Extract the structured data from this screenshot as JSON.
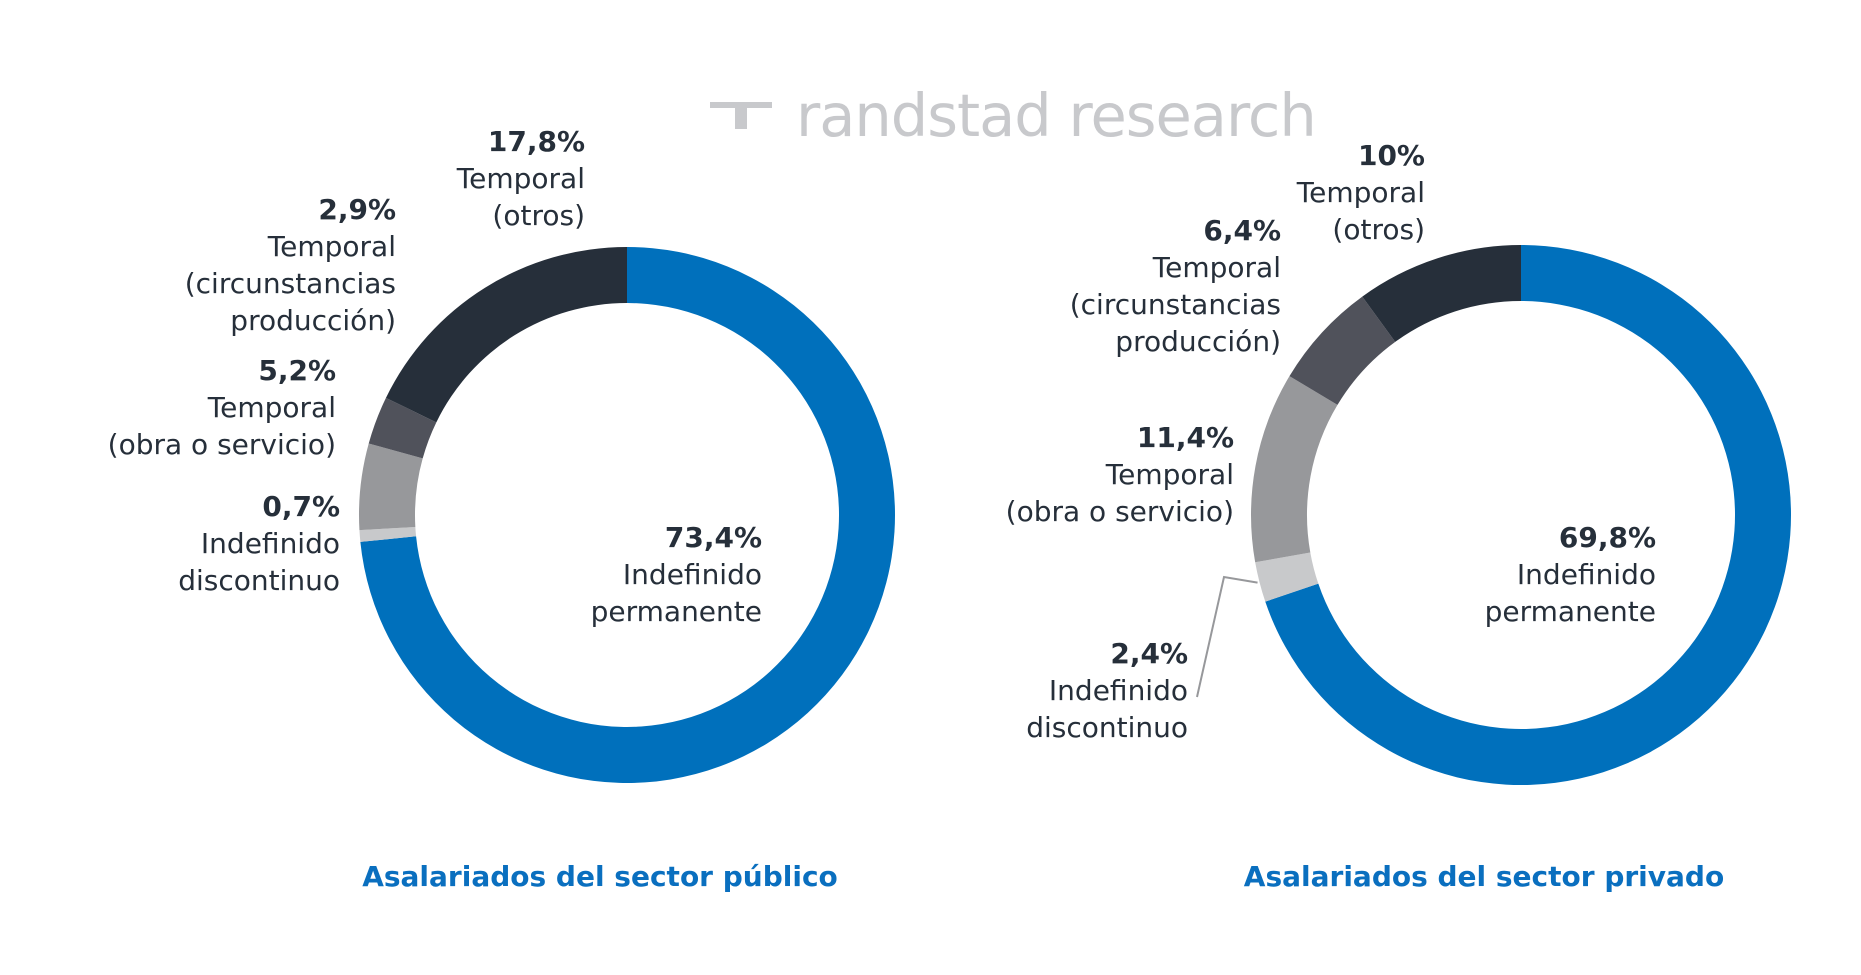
{
  "logo": {
    "text": "randstad research"
  },
  "colors": {
    "indefinido_permanente": "#0070bc",
    "indefinido_discontinuo": "#c8c9cb",
    "temporal_obra": "#97989b",
    "temporal_circunstancias": "#50525b",
    "temporal_otros": "#262f3a",
    "label_value": "#262f3a",
    "label_text": "#262f3a",
    "title": "#0a6fbf"
  },
  "chart_data": [
    {
      "type": "pie",
      "title": "Asalariados del sector público",
      "slices": [
        {
          "value": 73.4,
          "value_label": "73,4%",
          "label": [
            "Indefinido",
            "permanente"
          ]
        },
        {
          "value": 0.7,
          "value_label": "0,7%",
          "label": [
            "Indefinido",
            "discontinuo"
          ]
        },
        {
          "value": 5.2,
          "value_label": "5,2%",
          "label": [
            "Temporal",
            "(obra o servicio)"
          ]
        },
        {
          "value": 2.9,
          "value_label": "2,9%",
          "label": [
            "Temporal",
            "(circunstancias",
            "producción)"
          ]
        },
        {
          "value": 17.8,
          "value_label": "17,8%",
          "label": [
            "Temporal",
            "(otros)"
          ]
        }
      ]
    },
    {
      "type": "pie",
      "title": "Asalariados del sector privado",
      "slices": [
        {
          "value": 69.8,
          "value_label": "69,8%",
          "label": [
            "Indefinido",
            "permanente"
          ]
        },
        {
          "value": 2.4,
          "value_label": "2,4%",
          "label": [
            "Indefinido",
            "discontinuo"
          ]
        },
        {
          "value": 11.4,
          "value_label": "11,4%",
          "label": [
            "Temporal",
            "(obra o servicio)"
          ]
        },
        {
          "value": 6.4,
          "value_label": "6,4%",
          "label": [
            "Temporal",
            "(circunstancias",
            "producción)"
          ]
        },
        {
          "value": 10,
          "value_label": "10%",
          "label": [
            "Temporal",
            "(otros)"
          ]
        }
      ]
    }
  ]
}
